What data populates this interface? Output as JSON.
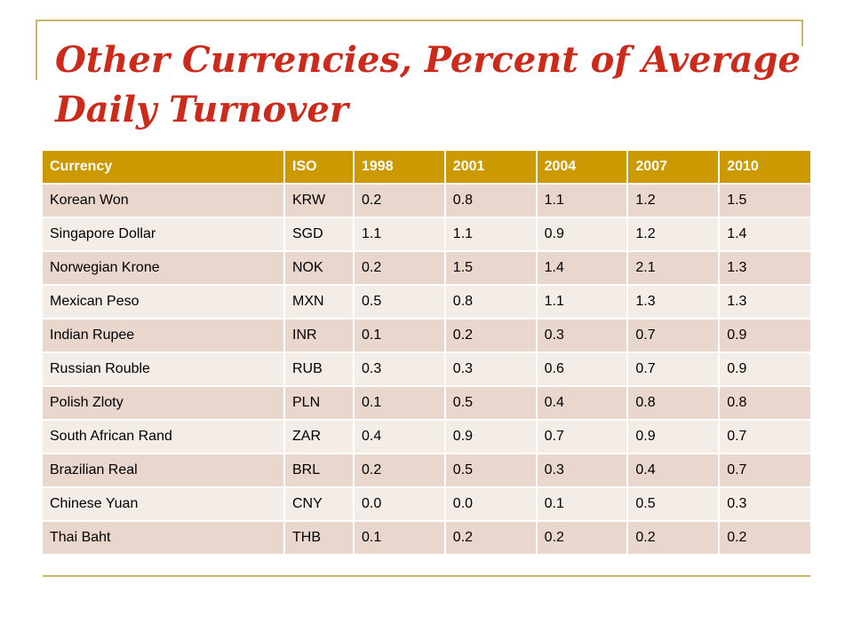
{
  "slide": {
    "title": "Other Currencies, Percent of Average Daily Turnover"
  },
  "table": {
    "headers": [
      "Currency",
      "ISO",
      "1998",
      "2001",
      "2004",
      "2007",
      "2010"
    ],
    "rows": [
      [
        "Korean Won",
        "KRW",
        "0.2",
        "0.8",
        "1.1",
        "1.2",
        "1.5"
      ],
      [
        "Singapore Dollar",
        "SGD",
        "1.1",
        "1.1",
        "0.9",
        "1.2",
        "1.4"
      ],
      [
        "Norwegian Krone",
        "NOK",
        "0.2",
        "1.5",
        "1.4",
        "2.1",
        "1.3"
      ],
      [
        "Mexican Peso",
        "MXN",
        "0.5",
        "0.8",
        "1.1",
        "1.3",
        "1.3"
      ],
      [
        "Indian Rupee",
        "INR",
        "0.1",
        "0.2",
        "0.3",
        "0.7",
        "0.9"
      ],
      [
        "Russian Rouble",
        "RUB",
        "0.3",
        "0.3",
        "0.6",
        "0.7",
        "0.9"
      ],
      [
        "Polish Zloty",
        "PLN",
        "0.1",
        "0.5",
        "0.4",
        "0.8",
        "0.8"
      ],
      [
        "South African Rand",
        "ZAR",
        "0.4",
        "0.9",
        "0.7",
        "0.9",
        "0.7"
      ],
      [
        "Brazilian Real",
        "BRL",
        "0.2",
        "0.5",
        "0.3",
        "0.4",
        "0.7"
      ],
      [
        "Chinese Yuan",
        "CNY",
        "0.0",
        "0.0",
        "0.1",
        "0.5",
        "0.3"
      ],
      [
        "Thai Baht",
        "THB",
        "0.1",
        "0.2",
        "0.2",
        "0.2",
        "0.2"
      ]
    ]
  },
  "colors": {
    "title": "#cc2a1a",
    "header_fill": "#cc9900",
    "row_fill_odd": "#e9d6cc",
    "row_fill_even": "#f4ece7",
    "rule": "#c8b56a"
  }
}
